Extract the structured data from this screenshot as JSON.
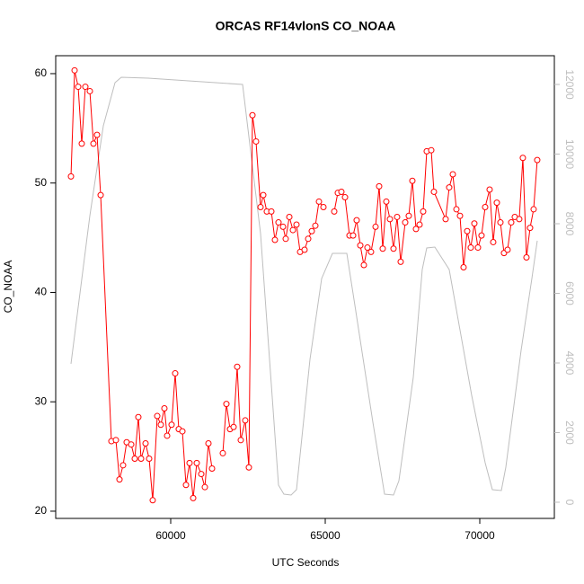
{
  "chart_data": {
    "type": "line",
    "title": "ORCAS RF14vlonS CO_NOAA",
    "xlabel": "UTC Seconds",
    "ylabel": "CO_NOAA",
    "xlim": [
      56279,
      72413
    ],
    "ylim": [
      19.34,
      61.64
    ],
    "y2lim": [
      -465,
      12826
    ],
    "xticks": [
      60000,
      65000,
      70000
    ],
    "yticks": [
      20,
      30,
      40,
      50,
      60
    ],
    "y2ticks": [
      0,
      2000,
      4000,
      6000,
      8000,
      10000,
      12000
    ],
    "series": [
      {
        "color": "#ff0000",
        "markers": true,
        "x": [
          56773,
          56890,
          57006,
          57122,
          57238,
          57384,
          57500,
          57616,
          57733,
          58081,
          58227,
          58343,
          58459,
          58575,
          58721,
          58837,
          58953,
          59041,
          59186,
          59302,
          59418,
          59564,
          59680,
          59796,
          59884,
          60029,
          60145,
          60261,
          60378,
          60494,
          60610,
          60727,
          60843,
          60988,
          61105,
          61221,
          61337,
          61510,
          61686,
          61802,
          61919,
          62035,
          62151,
          62267,
          62412,
          62529,
          62645,
          62761,
          62907,
          62994,
          63110,
          63256,
          63372,
          63488,
          63634,
          63721,
          63838,
          63954,
          64070,
          64186,
          64331,
          64448,
          64564,
          64680,
          64797,
          64942,
          65120,
          65291,
          65407,
          65523,
          65640,
          65785,
          65901,
          66017,
          66134,
          66250,
          66366,
          66482,
          66628,
          66744,
          66860,
          66976,
          67093,
          67209,
          67325,
          67441,
          67587,
          67703,
          67819,
          67936,
          68052,
          68168,
          68284,
          68430,
          68517,
          68895,
          69011,
          69128,
          69244,
          69360,
          69476,
          69592,
          69709,
          69825,
          69941,
          70057,
          70174,
          70319,
          70435,
          70552,
          70668,
          70784,
          70900,
          71017,
          71133,
          71278,
          71394,
          71511,
          71627,
          71743,
          71859
        ],
        "values": [
          50.6,
          60.3,
          58.8,
          53.6,
          58.8,
          58.4,
          53.6,
          54.4,
          48.9,
          26.4,
          26.5,
          22.9,
          24.2,
          26.3,
          26.1,
          24.8,
          28.6,
          24.8,
          26.2,
          24.8,
          21.0,
          28.7,
          27.9,
          29.4,
          26.9,
          27.9,
          32.6,
          27.5,
          27.3,
          22.4,
          24.4,
          21.2,
          24.4,
          23.4,
          22.2,
          26.2,
          23.9,
          null,
          25.3,
          29.8,
          27.5,
          27.7,
          33.2,
          26.5,
          28.3,
          24.0,
          56.2,
          53.8,
          47.8,
          48.9,
          47.4,
          47.4,
          44.8,
          46.4,
          46.0,
          44.9,
          46.9,
          45.7,
          46.2,
          43.7,
          43.9,
          44.9,
          45.6,
          46.1,
          48.3,
          47.8,
          null,
          47.4,
          49.1,
          49.2,
          48.7,
          45.2,
          45.2,
          46.6,
          44.3,
          42.5,
          44.1,
          43.7,
          46.0,
          49.7,
          44.0,
          48.3,
          46.7,
          44.0,
          46.9,
          42.8,
          46.4,
          47.0,
          50.2,
          45.8,
          46.2,
          47.4,
          52.9,
          53.0,
          49.2,
          46.7,
          49.6,
          50.8,
          47.6,
          47.0,
          42.3,
          45.6,
          44.1,
          46.3,
          44.1,
          45.2,
          47.8,
          49.4,
          44.6,
          48.2,
          46.4,
          43.6,
          43.9,
          46.4,
          46.9,
          46.7,
          52.3,
          43.2,
          45.9,
          47.6,
          52.1
        ]
      },
      {
        "color": "#bebebe",
        "axis": "y2",
        "markers": false,
        "x": [
          56773,
          57384,
          57820,
          58198,
          58401,
          59273,
          62326,
          62907,
          63488,
          63663,
          63896,
          64070,
          64506,
          64884,
          65233,
          65698,
          65960,
          66541,
          66919,
          67209,
          67384,
          67849,
          68139,
          68284,
          68546,
          69011,
          69738,
          70174,
          70407,
          70698,
          70843,
          71337,
          71686,
          71860
        ],
        "values": [
          3974,
          8232,
          10813,
          12052,
          12206,
          12181,
          12000,
          7716,
          490,
          232,
          206,
          361,
          4103,
          6426,
          7148,
          7148,
          5652,
          2297,
          232,
          206,
          619,
          3587,
          6684,
          7303,
          7329,
          6684,
          3071,
          1135,
          361,
          335,
          1006,
          4361,
          6426,
          7510
        ]
      }
    ]
  }
}
